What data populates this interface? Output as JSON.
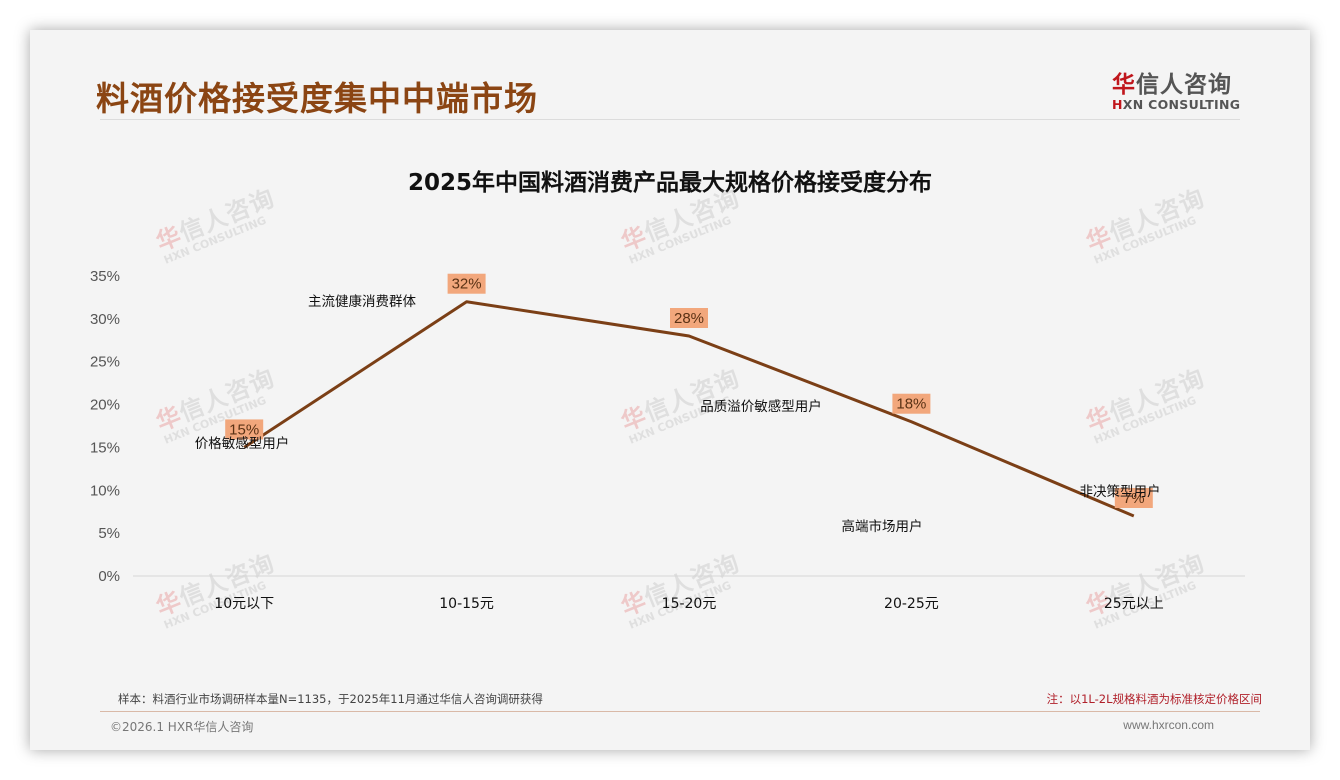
{
  "header": {
    "page_title": "料酒价格接受度集中中端市场",
    "logo_cn_first": "华",
    "logo_cn_rest": "信人咨询",
    "logo_en_first": "H",
    "logo_en_rest": "XN CONSULTING"
  },
  "watermark": {
    "cn_first": "华",
    "cn_rest": "信人咨询",
    "en": "HXN CONSULTING"
  },
  "chart_data": {
    "type": "line",
    "title": "2025年中国料酒消费产品最大规格价格接受度分布",
    "categories": [
      "10元以下",
      "10-15元",
      "15-20元",
      "20-25元",
      "25元以上"
    ],
    "series": [
      {
        "name": "价格接受度",
        "values": [
          15,
          32,
          28,
          18,
          7
        ],
        "color": "#7b3f16"
      }
    ],
    "data_labels": [
      "15%",
      "32%",
      "28%",
      "18%",
      "7%"
    ],
    "data_label_bg": "#f2a77c",
    "y_ticks": [
      "0%",
      "5%",
      "10%",
      "15%",
      "20%",
      "25%",
      "30%",
      "35%"
    ],
    "ylim": [
      0,
      35
    ],
    "xlabel": "",
    "ylabel": "",
    "grid": false,
    "legend": "none",
    "annotations": [
      {
        "text": "价格敏感型用户",
        "category_index": 0
      },
      {
        "text": "主流健康消费群体",
        "category_index": 1
      },
      {
        "text": "品质溢价敏感型用户",
        "category_index": 2
      },
      {
        "text": "高端市场用户",
        "category_index": 3
      },
      {
        "text": "非决策型用户",
        "category_index": 4
      }
    ]
  },
  "footer": {
    "sample_note": "样本：料酒行业市场调研样本量N=1135，于2025年11月通过华信人咨询调研获得",
    "red_note": "注：以1L-2L规格料酒为标准核定价格区间",
    "copyright": "©2026.1 HXR华信人咨询",
    "website": "www.hxrcon.com"
  }
}
